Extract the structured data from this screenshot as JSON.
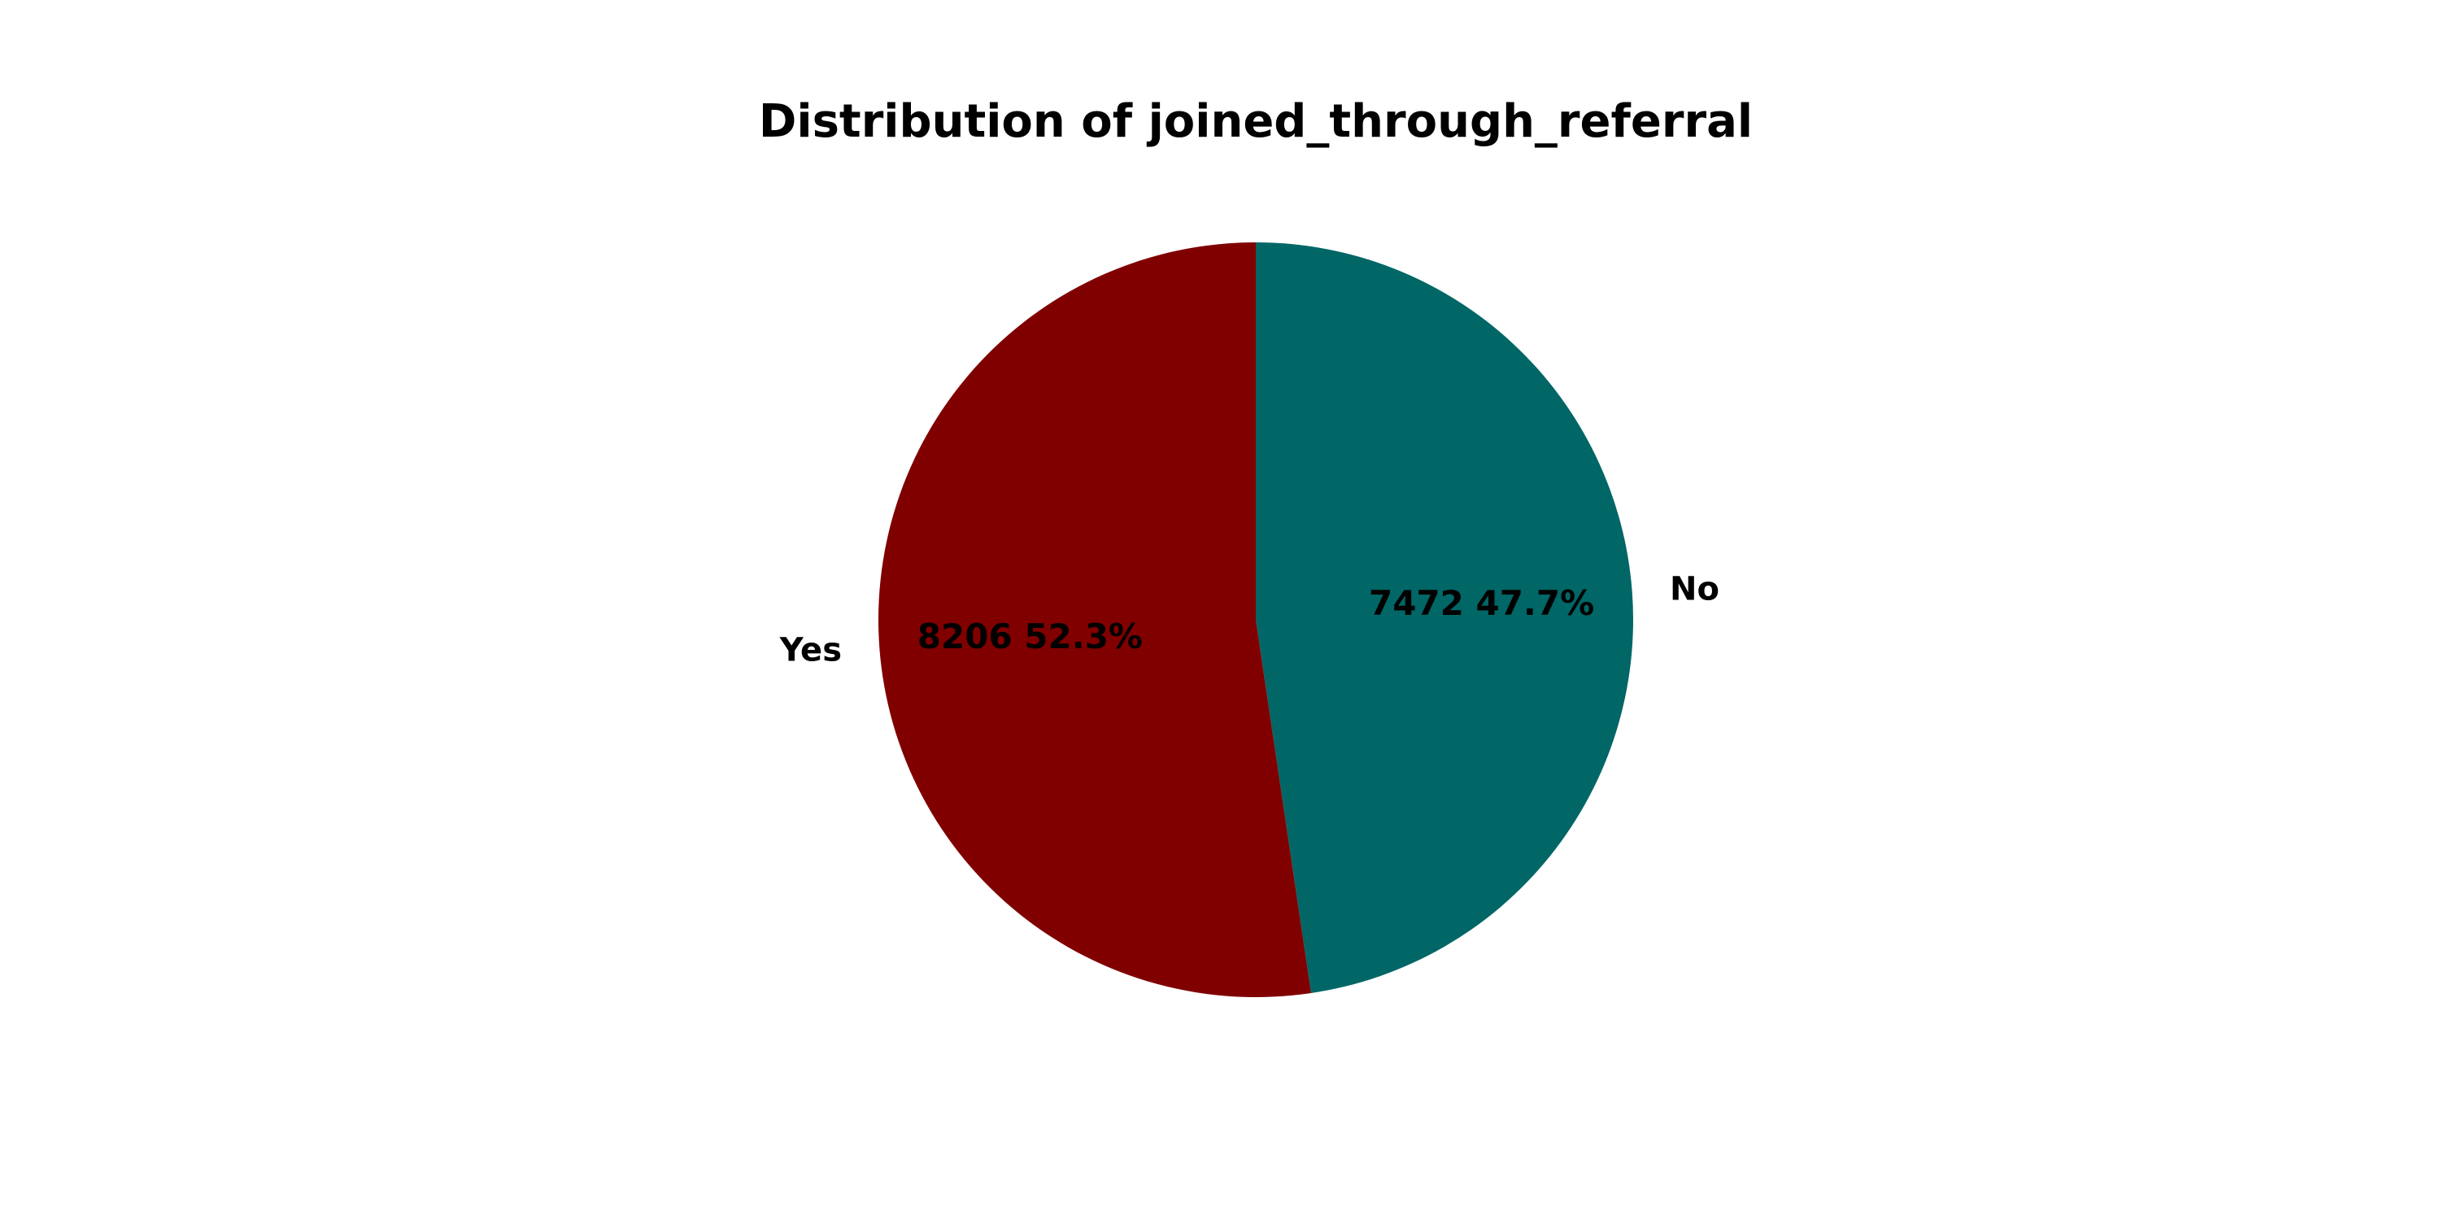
{
  "chart_data": {
    "type": "pie",
    "title": "Distribution of joined_through_referral",
    "slices": [
      {
        "label": "No",
        "value": 7472,
        "percent": "47.7%",
        "autopct": "7472 47.7%",
        "color": "#006666"
      },
      {
        "label": "Yes",
        "value": 8206,
        "percent": "52.3%",
        "autopct": "8206 52.3%",
        "color": "#800000"
      }
    ],
    "start_angle_degrees": 90,
    "direction": "clockwise",
    "legend": "none"
  }
}
